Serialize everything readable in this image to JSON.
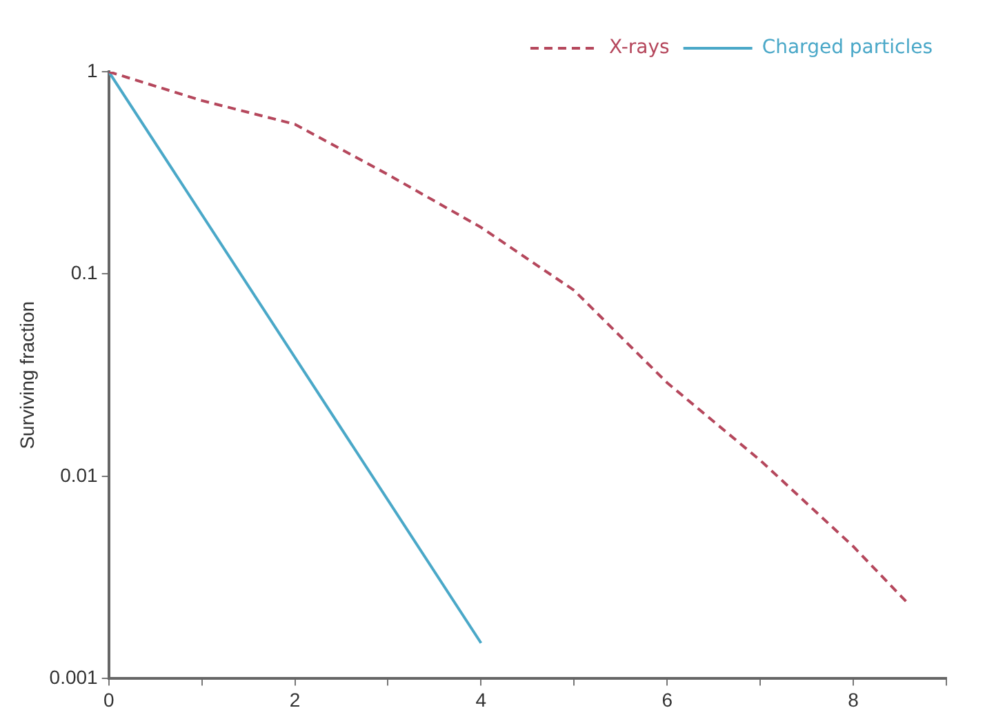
{
  "chart_data": {
    "type": "line",
    "ylabel": "Surviving fraction",
    "log": "y",
    "grid": false,
    "legend": "top right",
    "marker": "none",
    "xlim": [
      0,
      9
    ],
    "xticks": [
      0,
      {
        "value": 1,
        "label": null
      },
      2,
      {
        "value": 3,
        "label": null
      },
      4,
      {
        "value": 5,
        "label": null
      },
      6,
      {
        "value": 7,
        "label": null
      },
      8,
      {
        "value": 9,
        "label": null
      }
    ],
    "ylim": [
      0.001,
      1
    ],
    "yticks": [
      0.001,
      0.01,
      0.1,
      1
    ],
    "series": [
      {
        "name": "X-rays",
        "color": "#b5475c",
        "line_style": "dashed",
        "x": [
          0,
          1,
          2,
          3,
          4,
          5,
          6,
          7,
          8,
          8.57
        ],
        "values": [
          1,
          0.72,
          0.55,
          0.31,
          0.17,
          0.083,
          0.029,
          0.012,
          0.0045,
          0.0024
        ]
      },
      {
        "name": "Charged particles",
        "color": "#4aa8c8",
        "line_style": "solid",
        "x": [
          0,
          4
        ],
        "values": [
          1,
          0.0015
        ]
      }
    ]
  }
}
